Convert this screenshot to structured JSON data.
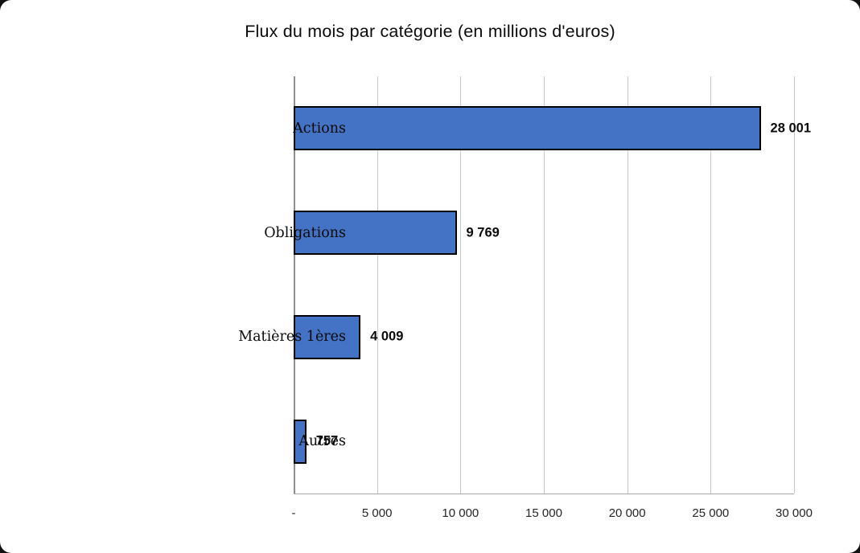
{
  "chart_data": {
    "type": "bar",
    "orientation": "horizontal",
    "title": "Flux du mois par catégorie (en millions d'euros)",
    "categories": [
      "Actions",
      "Obligations",
      "Matières 1ères",
      "Autres"
    ],
    "values": [
      28001,
      9769,
      4009,
      757
    ],
    "value_labels": [
      "28 001",
      "9 769",
      "4 009",
      "757"
    ],
    "xlim": [
      0,
      30000
    ],
    "x_ticks": [
      {
        "value": 0,
        "label": "-"
      },
      {
        "value": 5000,
        "label": "5 000"
      },
      {
        "value": 10000,
        "label": "10 000"
      },
      {
        "value": 15000,
        "label": "15 000"
      },
      {
        "value": 20000,
        "label": "20 000"
      },
      {
        "value": 25000,
        "label": "25 000"
      },
      {
        "value": 30000,
        "label": "30 000"
      }
    ],
    "xlabel": "",
    "ylabel": "",
    "grid": true,
    "legend": false,
    "colors": {
      "bar_fill": "#4472c4",
      "bar_border": "#000000",
      "gridline": "#c9c9c9",
      "axis_line": "#a6a6a6",
      "text": "#0b0b0b"
    }
  }
}
